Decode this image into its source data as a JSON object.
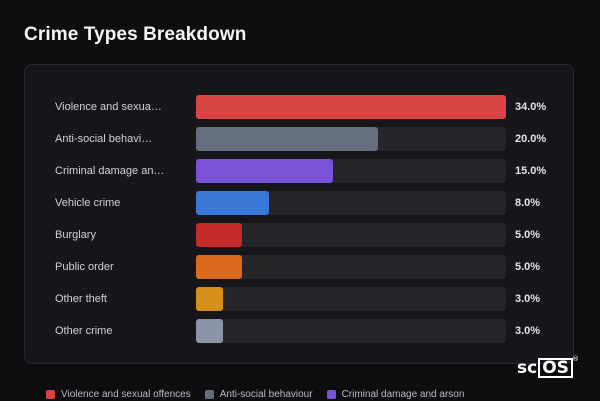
{
  "chart_data": {
    "type": "bar",
    "orientation": "horizontal",
    "title": "Crime Types Breakdown",
    "categories": [
      "Violence and sexual offences",
      "Anti-social behaviour",
      "Criminal damage and arson",
      "Vehicle crime",
      "Burglary",
      "Public order",
      "Other theft",
      "Other crime"
    ],
    "display_labels": [
      "Violence and sexua…",
      "Anti-social behavi…",
      "Criminal damage an…",
      "Vehicle crime",
      "Burglary",
      "Public order",
      "Other theft",
      "Other crime"
    ],
    "values": [
      34.0,
      20.0,
      15.0,
      8.0,
      5.0,
      5.0,
      3.0,
      3.0
    ],
    "value_labels": [
      "34.0%",
      "20.0%",
      "15.0%",
      "8.0%",
      "5.0%",
      "5.0%",
      "3.0%",
      "3.0%"
    ],
    "unit": "%",
    "xlim": [
      0,
      34
    ],
    "colors": [
      "#d94545",
      "#646e7e",
      "#7a52d8",
      "#3a78d8",
      "#c42a2a",
      "#db6a1e",
      "#d68f18",
      "#8b95a7"
    ],
    "legend": {
      "position": "bottom",
      "items": [
        "Violence and sexual offences",
        "Anti-social behaviour",
        "Criminal damage and arson"
      ],
      "colors": [
        "#d94545",
        "#646e7e",
        "#7a52d8"
      ]
    },
    "grid": false
  },
  "watermark": {
    "text_left": "sc",
    "text_boxed": "OS",
    "mark": "®"
  }
}
